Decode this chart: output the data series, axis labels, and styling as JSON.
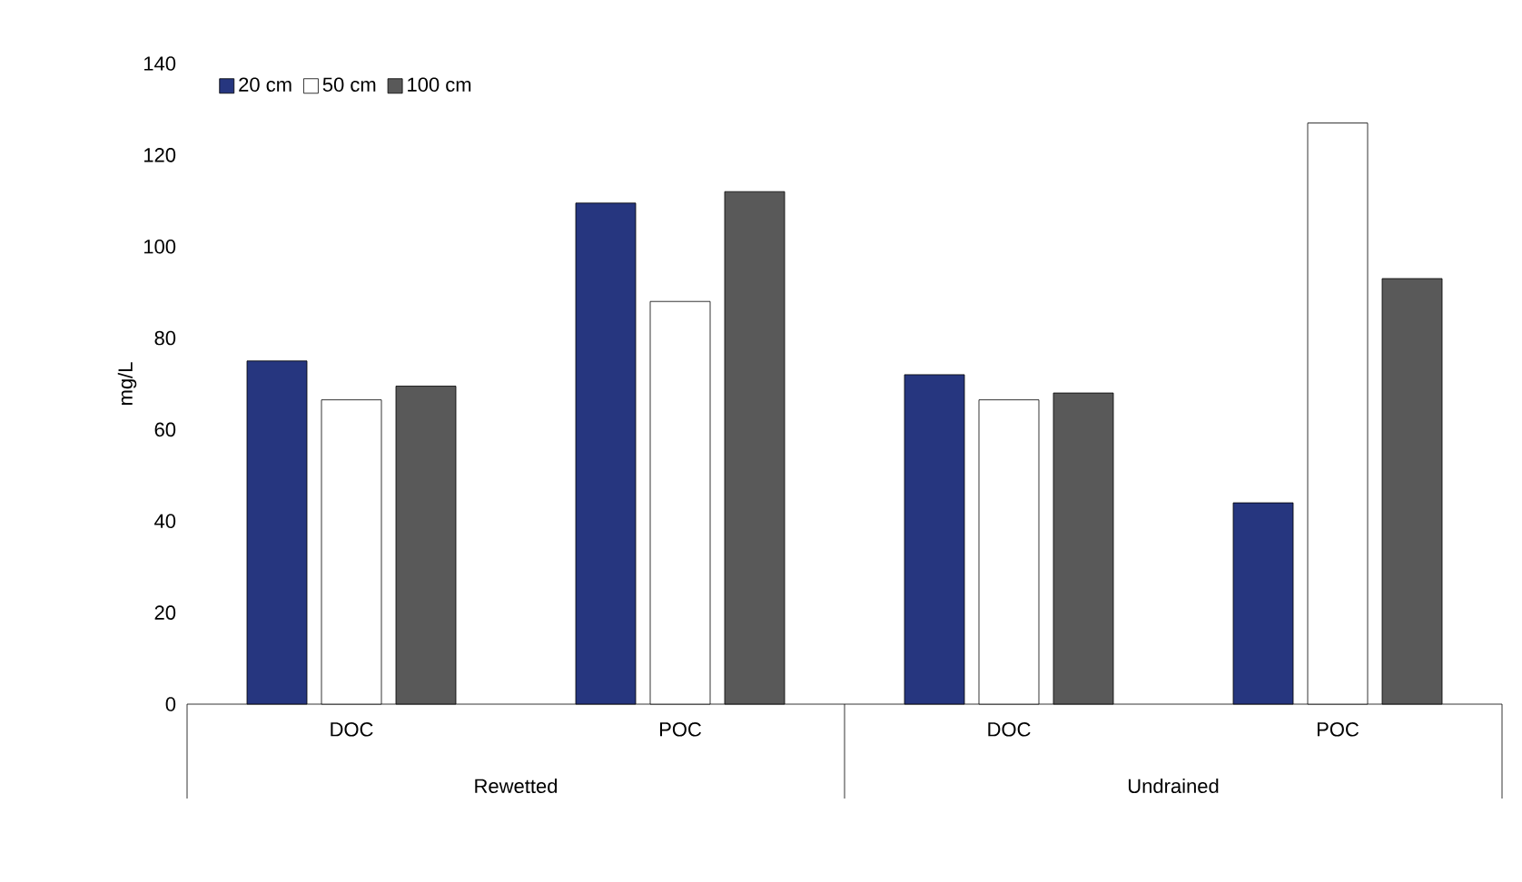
{
  "chart_data": {
    "type": "bar",
    "ylabel": "mg/L",
    "categories": [
      "DOC",
      "POC",
      "DOC",
      "POC"
    ],
    "series": [
      {
        "name": "20 cm",
        "color": "#26367f",
        "values": [
          75,
          109.5,
          72,
          44
        ]
      },
      {
        "name": "50 cm",
        "color": "#ffffff",
        "values": [
          66.5,
          88,
          66.5,
          127
        ]
      },
      {
        "name": "100 cm",
        "color": "#595959",
        "values": [
          69.5,
          112,
          68,
          93
        ]
      }
    ],
    "annotations": [
      "Rewetted",
      "Undrained"
    ],
    "ylim": [
      0,
      140
    ],
    "yticks": [
      0,
      20,
      40,
      60,
      80,
      100,
      120,
      140
    ],
    "legend": "top left"
  }
}
